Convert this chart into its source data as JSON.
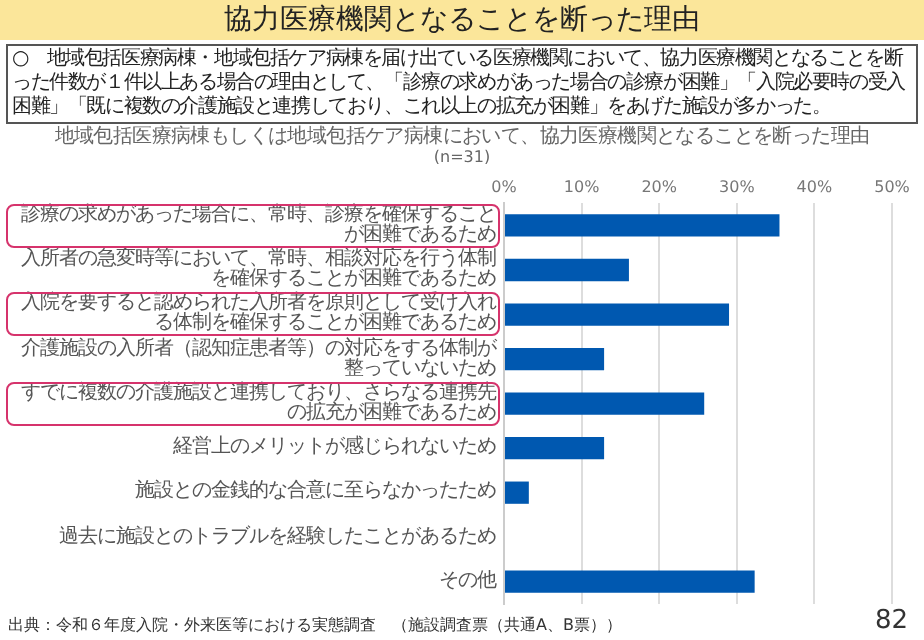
{
  "chart_data": {
    "type": "bar",
    "orientation": "horizontal",
    "title": "協力医療機関となることを断った理由",
    "subtitle": "地域包括医療病棟もしくは地域包括ケア病棟において、協力医療機関となることを断った理由",
    "annotations": [
      "○　地域包括医療病棟・地域包括ケア病棟を届け出ている医療機関において、協力医療機関となることを断った件数が１件以上ある場合の理由として、「診療の求めがあった場合の診療が困難」「入院必要時の受入困難」「既に複数の介護施設と連携しており、これ以上の拡充が困難」をあげた施設が多かった。",
      "(n=31)",
      "出典：令和６年度入院・外来医等における実態調査　（施設調査票（共通A、B票））",
      "82"
    ],
    "categories": [
      "診療の求めがあった場合に、常時、診療を確保することが困難であるため",
      "入所者の急変時等において、常時、相談対応を行う体制を確保することが困難であるため",
      "入院を要すると認められた入所者を原則として受け入れる体制を確保することが困難であるため",
      "介護施設の入所者（認知症患者等）の対応をする体制が整っていないため",
      "すでに複数の介護施設と連携しており、さらなる連携先の拡充が困難であるため",
      "経営上のメリットが感じられないため",
      "施設との金銭的な合意に至らなかったため",
      "過去に施設とのトラブルを経験したことがあるため",
      "その他"
    ],
    "values": [
      35.5,
      16.1,
      29.0,
      12.9,
      25.8,
      12.9,
      3.2,
      0,
      32.3
    ],
    "color": "#0058b0",
    "xlim": [
      0,
      50
    ],
    "xticks": [
      {
        "value": 0,
        "label": "0%"
      },
      {
        "value": 10,
        "label": "10%"
      },
      {
        "value": 20,
        "label": "20%"
      },
      {
        "value": 30,
        "label": "30%"
      },
      {
        "value": 40,
        "label": "40%"
      },
      {
        "value": 50,
        "label": "50%"
      }
    ],
    "grid": "x"
  }
}
